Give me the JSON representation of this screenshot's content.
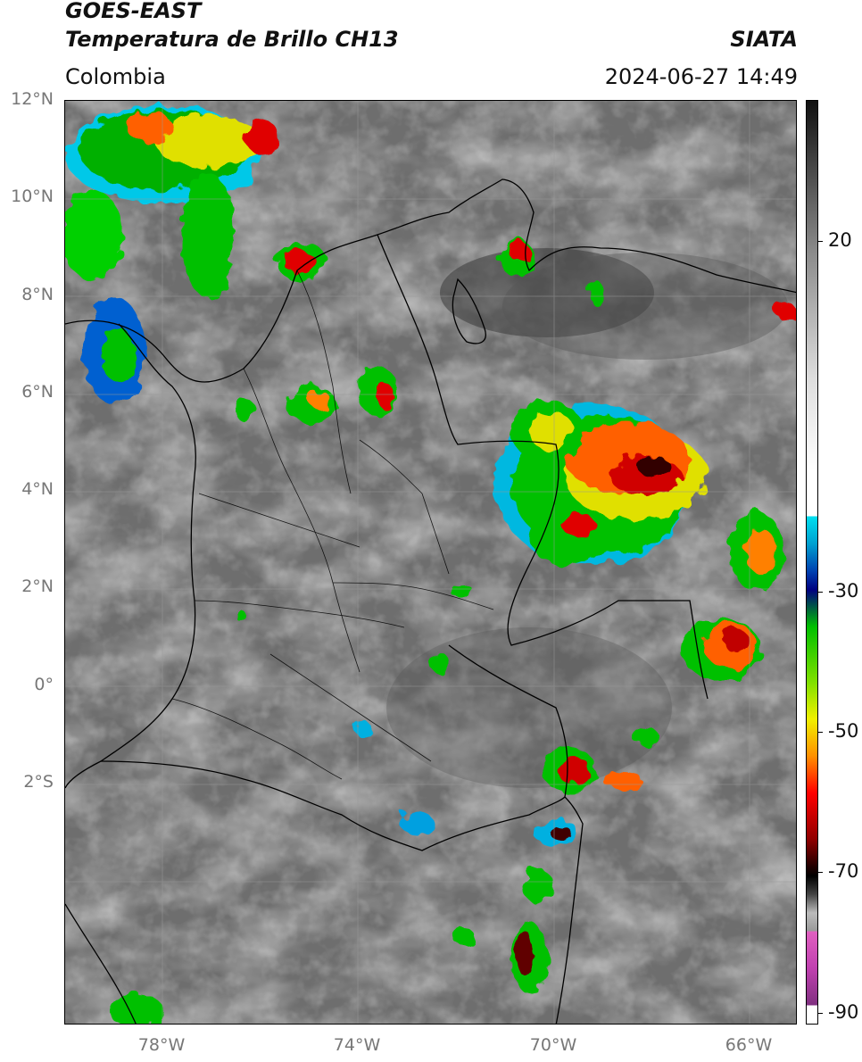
{
  "header": {
    "satellite": "GOES-EAST",
    "product": "Temperatura de Brillo CH13",
    "source": "SIATA",
    "region": "Colombia",
    "datetime": "2024-06-27 14:49"
  },
  "map": {
    "lat_labels": [
      "12°N",
      "10°N",
      "8°N",
      "6°N",
      "4°N",
      "2°N",
      "0°",
      "2°S"
    ],
    "lon_labels": [
      "78°W",
      "74°W",
      "70°W",
      "66°W"
    ],
    "extent": {
      "lon_min": -80,
      "lon_max": -65,
      "lat_min": -5,
      "lat_max": 14
    }
  },
  "colorbar": {
    "ticks": [
      "20",
      "-30",
      "-50",
      "-70",
      "-90"
    ],
    "colors": {
      "gray_top": "#111111",
      "gray_bottom": "#ffffff",
      "cyan": "#00c8e8",
      "blue": "#0020a0",
      "green": "#00e000",
      "yellow": "#f0f000",
      "orange": "#ff8000",
      "red": "#e00000",
      "dark_red": "#400000",
      "magenta": "#e060c0",
      "purple": "#803080"
    }
  }
}
